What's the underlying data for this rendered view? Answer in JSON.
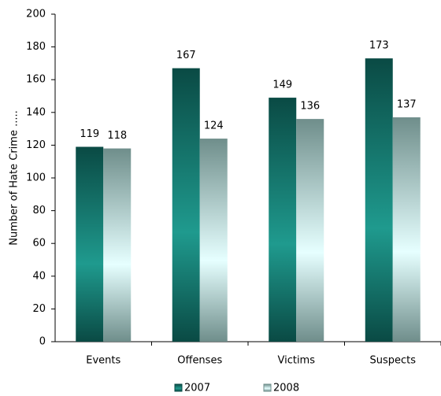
{
  "chart_data": {
    "type": "bar",
    "y_label": "Number of Hate Crime .....",
    "categories": [
      "Events",
      "Offenses",
      "Victims",
      "Suspects"
    ],
    "series": [
      {
        "name": "2007",
        "color": "#0a4a44",
        "values": [
          119,
          167,
          149,
          173
        ]
      },
      {
        "name": "2008",
        "color": "#6f8e8b",
        "values": [
          118,
          124,
          136,
          137
        ]
      }
    ],
    "ylim": [
      0,
      200
    ],
    "yticks": [
      0,
      20,
      40,
      60,
      80,
      100,
      120,
      140,
      160,
      180,
      200
    ]
  }
}
